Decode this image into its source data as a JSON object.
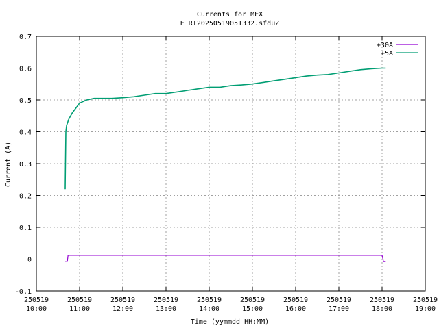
{
  "chart_data": {
    "type": "line",
    "title": "Currents for MEX",
    "subtitle": "E_RT20250519051332.sfduZ",
    "xlabel": "Time (yymmdd HH:MM)",
    "ylabel": "Current (A)",
    "xlim": [
      "2025-05-19 10:00",
      "2025-05-19 19:00"
    ],
    "ylim": [
      -0.1,
      0.7
    ],
    "grid": true,
    "legend_position": "top-right",
    "x_ticks": [
      {
        "date": "250519",
        "time": "10:00"
      },
      {
        "date": "250519",
        "time": "11:00"
      },
      {
        "date": "250519",
        "time": "12:00"
      },
      {
        "date": "250519",
        "time": "13:00"
      },
      {
        "date": "250519",
        "time": "14:00"
      },
      {
        "date": "250519",
        "time": "15:00"
      },
      {
        "date": "250519",
        "time": "16:00"
      },
      {
        "date": "250519",
        "time": "17:00"
      },
      {
        "date": "250519",
        "time": "18:00"
      },
      {
        "date": "250519",
        "time": "19:00"
      }
    ],
    "y_ticks": [
      "-0.1",
      "0",
      "0.1",
      "0.2",
      "0.3",
      "0.4",
      "0.5",
      "0.6",
      "0.7"
    ],
    "series": [
      {
        "name": "+30A",
        "color": "#9400d3",
        "x": [
          "10:40",
          "10:43",
          "10:44",
          "10:50",
          "11:00",
          "11:30",
          "12:00",
          "12:30",
          "13:00",
          "13:30",
          "14:00",
          "14:30",
          "15:00",
          "15:30",
          "16:00",
          "16:30",
          "17:00",
          "17:30",
          "18:00",
          "18:01",
          "18:02",
          "18:05"
        ],
        "y": [
          -0.007,
          -0.007,
          0.012,
          0.012,
          0.012,
          0.012,
          0.012,
          0.012,
          0.012,
          0.012,
          0.012,
          0.012,
          0.012,
          0.012,
          0.012,
          0.012,
          0.012,
          0.012,
          0.012,
          0.003,
          -0.008,
          -0.008
        ]
      },
      {
        "name": "+5A",
        "color": "#009e73",
        "x": [
          "10:40",
          "10:41",
          "10:42",
          "10:45",
          "10:50",
          "10:55",
          "11:00",
          "11:05",
          "11:10",
          "11:20",
          "11:30",
          "11:45",
          "12:00",
          "12:15",
          "12:30",
          "12:45",
          "13:00",
          "13:15",
          "13:30",
          "13:45",
          "14:00",
          "14:15",
          "14:30",
          "14:45",
          "15:00",
          "15:15",
          "15:30",
          "15:45",
          "16:00",
          "16:15",
          "16:30",
          "16:45",
          "17:00",
          "17:15",
          "17:30",
          "17:45",
          "18:00",
          "18:05"
        ],
        "y": [
          0.22,
          0.4,
          0.42,
          0.44,
          0.46,
          0.475,
          0.49,
          0.495,
          0.5,
          0.505,
          0.505,
          0.505,
          0.507,
          0.51,
          0.515,
          0.52,
          0.52,
          0.525,
          0.53,
          0.535,
          0.54,
          0.54,
          0.545,
          0.547,
          0.55,
          0.555,
          0.56,
          0.565,
          0.57,
          0.575,
          0.578,
          0.58,
          0.585,
          0.59,
          0.595,
          0.598,
          0.6,
          0.6
        ]
      }
    ]
  }
}
